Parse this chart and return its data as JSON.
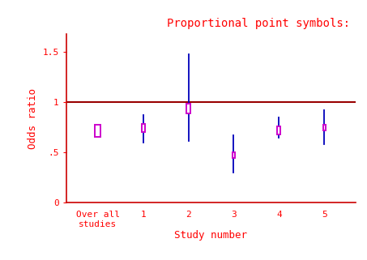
{
  "title": "Proportional point symbols:",
  "ylabel": "Odds ratio",
  "xlabel": "Study number",
  "title_color": "#ff0000",
  "label_color": "#ff0000",
  "axis_color": "#cc0000",
  "tick_color": "#ff0000",
  "ref_line_y": 1.0,
  "ref_line_color": "#990000",
  "background_color": "#ffffff",
  "xlim": [
    -0.7,
    5.7
  ],
  "ylim": [
    0,
    1.68
  ],
  "yticks": [
    0,
    0.5,
    1.0,
    1.5
  ],
  "ytick_labels": [
    "0",
    ".5",
    "1",
    "1.5"
  ],
  "x_positions": [
    0,
    1,
    2,
    3,
    4,
    5
  ],
  "x_tick_labels": [
    "Over all\nstudies",
    "1",
    "2",
    "3",
    "4",
    "5"
  ],
  "or_values": [
    0.715,
    0.745,
    0.935,
    0.475,
    0.72,
    0.745
  ],
  "ci_lower": [
    0.665,
    0.595,
    0.615,
    0.305,
    0.645,
    0.585
  ],
  "ci_upper": [
    0.765,
    0.875,
    1.48,
    0.67,
    0.845,
    0.92
  ],
  "ci_color": "#0000bb",
  "square_color": "#cc00cc",
  "square_sizes_data": [
    0.115,
    0.075,
    0.095,
    0.055,
    0.075,
    0.055
  ],
  "square_linewidth": 1.4,
  "ci_linewidth": 1.3,
  "fontsize_ticks": 8,
  "fontsize_labels": 9,
  "fontsize_title": 10
}
